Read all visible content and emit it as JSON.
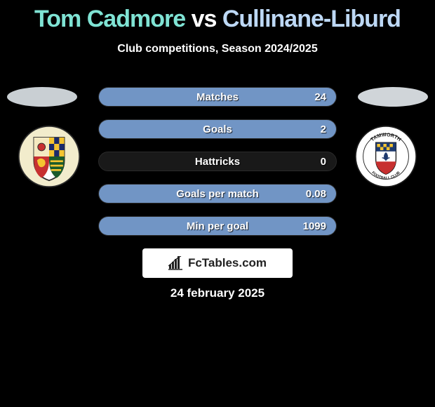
{
  "title": {
    "player1": "Tom Cadmore",
    "vs": "vs",
    "player2": "Cullinane-Liburd",
    "player1_color": "#7fe3d4",
    "player2_color": "#bdd8f5"
  },
  "subtitle": "Club competitions, Season 2024/2025",
  "avatars": {
    "left_bg": "#c9cfd3",
    "right_bg": "#d0d5d9"
  },
  "crests": {
    "left": {
      "outer_bg": "#f2eccc",
      "shield_left_top": "#f4e9c0",
      "shield_right_top1": "#1a2a6b",
      "shield_right_top2": "#f4c430",
      "shield_left_bottom": "#c73030",
      "lion": "#f4c430",
      "shield_right_bottom": "#1a5a2a",
      "bars": "#f4c430",
      "border": "#2b2b2b"
    },
    "right": {
      "outer_bg": "#ffffff",
      "ring_text": "TAMWORTH",
      "ring_text2": "FOOTBALL CLUB",
      "ring_color": "#1b1b1b",
      "shield_top": "#1e3a6e",
      "shield_top_pattern": "#f4c430",
      "shield_mid": "#ffffff",
      "fleur": "#1e3a6e",
      "shield_bottom": "#c73030"
    }
  },
  "stats": [
    {
      "label": "Matches",
      "value_right": "24",
      "fill_pct": 100,
      "fill_color": "#7195c5"
    },
    {
      "label": "Goals",
      "value_right": "2",
      "fill_pct": 100,
      "fill_color": "#7195c5"
    },
    {
      "label": "Hattricks",
      "value_right": "0",
      "fill_pct": 0,
      "fill_color": "#7195c5"
    },
    {
      "label": "Goals per match",
      "value_right": "0.08",
      "fill_pct": 100,
      "fill_color": "#7195c5"
    },
    {
      "label": "Min per goal",
      "value_right": "1099",
      "fill_pct": 100,
      "fill_color": "#7195c5"
    }
  ],
  "brand": {
    "text": "FcTables.com",
    "icon": "bar-chart-icon",
    "icon_color": "#212121"
  },
  "date": "24 february 2025",
  "colors": {
    "page_bg": "#000000",
    "bar_bg": "#191919",
    "bar_border": "#2a2a2a",
    "text": "#ffffff"
  }
}
